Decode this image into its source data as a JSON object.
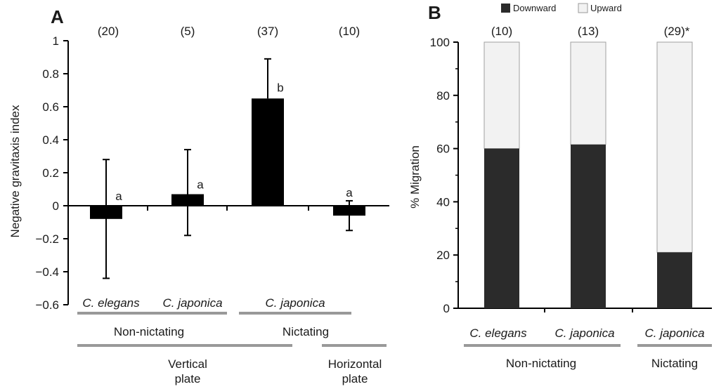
{
  "colors": {
    "bar_dark": "#000000",
    "bar_down": "#2b2b2b",
    "bar_up": "#f2f2f2",
    "group_line": "#999999"
  },
  "chart_data": [
    {
      "panel": "A",
      "type": "bar",
      "ylabel": "Negative gravitaxis index",
      "ylim": [
        -0.6,
        1
      ],
      "yticks": [
        -0.6,
        -0.4,
        -0.2,
        0,
        0.2,
        0.4,
        0.6,
        0.8,
        1
      ],
      "yticklabels": [
        "−0.6",
        "−0.4",
        "−0.2",
        "0",
        "0.2",
        "0.4",
        "0.6",
        "0.8",
        "1"
      ],
      "values": [
        -0.08,
        0.07,
        0.65,
        -0.06
      ],
      "error_upper": [
        0.28,
        0.34,
        0.89,
        0.03
      ],
      "error_lower": [
        -0.44,
        -0.18,
        0.65,
        -0.15
      ],
      "sig_letters": [
        "a",
        "a",
        "b",
        "a"
      ],
      "n_labels": [
        "(20)",
        "(5)",
        "(37)",
        "(10)"
      ],
      "species": [
        "C. elegans",
        "C. japonica",
        "C. japonica"
      ],
      "groups_level1": [
        "Non-nictating",
        "Nictating"
      ],
      "groups_level2_left": "Vertical\nplate",
      "groups_level2_right": "Horizontal\nplate"
    },
    {
      "panel": "B",
      "type": "bar",
      "stacked": true,
      "ylabel": "% Migration",
      "ylim": [
        0,
        100
      ],
      "yticks": [
        0,
        20,
        40,
        60,
        80,
        100
      ],
      "yticklabels": [
        "0",
        "20",
        "40",
        "60",
        "80",
        "100"
      ],
      "series": [
        {
          "name": "Downward",
          "values": [
            60,
            61.5,
            21
          ]
        },
        {
          "name": "Upward",
          "values": [
            40,
            38.5,
            79
          ]
        }
      ],
      "n_labels": [
        "(10)",
        "(13)",
        "(29)*"
      ],
      "species": [
        "C. elegans",
        "C. japonica",
        "C. japonica"
      ],
      "groups": [
        "Non-nictating",
        "Nictating"
      ],
      "legend_position": "top"
    }
  ]
}
